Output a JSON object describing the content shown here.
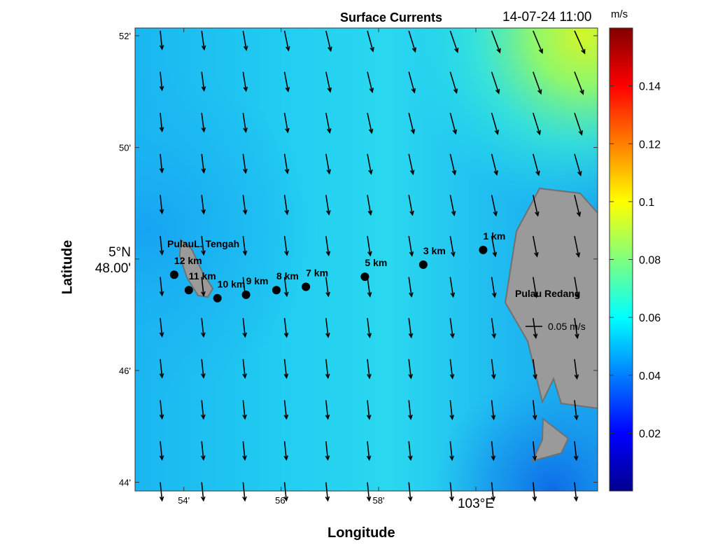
{
  "header": {
    "title": "Surface Currents",
    "timestamp": "14-07-24 11:00"
  },
  "axes": {
    "xlabel": "Longitude",
    "ylabel": "Latitude",
    "x_ticks": [
      {
        "label": "54'",
        "value": 102.9
      },
      {
        "label": "56'",
        "value": 102.9333
      },
      {
        "label": "58'",
        "value": 102.9667
      },
      {
        "label": "103°E",
        "value": 103.0
      }
    ],
    "y_ticks": [
      {
        "label": "44'",
        "value": 4.7333
      },
      {
        "label": "46'",
        "value": 4.7667
      },
      {
        "label": "5°N\n48.00'",
        "value": 4.8
      },
      {
        "label": "50'",
        "value": 4.8333
      },
      {
        "label": "52'",
        "value": 4.8667
      }
    ],
    "xlim": [
      102.8833,
      103.0417
    ],
    "ylim": [
      4.7307,
      4.869
    ]
  },
  "colorbar": {
    "unit": "m/s",
    "range": [
      0,
      0.16
    ],
    "colormap": "jet",
    "ticks": [
      {
        "label": "0.02",
        "value": 0.02
      },
      {
        "label": "0.04",
        "value": 0.04
      },
      {
        "label": "0.06",
        "value": 0.06
      },
      {
        "label": "0.08",
        "value": 0.08
      },
      {
        "label": "0.1",
        "value": 0.1
      },
      {
        "label": "0.12",
        "value": 0.12
      },
      {
        "label": "0.14",
        "value": 0.14
      }
    ]
  },
  "vector_key": {
    "label": "0.05 m/s",
    "speed": 0.05
  },
  "islands": [
    {
      "name": "Pulau Redang",
      "label": "Pulau Redang"
    },
    {
      "name": "Pulau L. Tengah",
      "label": "PulauL. Tengah"
    }
  ],
  "stations": [
    {
      "label": "1 km",
      "lon": 103.0025,
      "lat": 4.8027
    },
    {
      "label": "3 km",
      "lon": 102.982,
      "lat": 4.7983
    },
    {
      "label": "5 km",
      "lon": 102.962,
      "lat": 4.7947
    },
    {
      "label": "7 km",
      "lon": 102.9418,
      "lat": 4.7917
    },
    {
      "label": "8 km",
      "lon": 102.9317,
      "lat": 4.7907
    },
    {
      "label": "9 km",
      "lon": 102.9213,
      "lat": 4.7893
    },
    {
      "label": "10 km",
      "lon": 102.9115,
      "lat": 4.7883
    },
    {
      "label": "11 km",
      "lon": 102.9017,
      "lat": 4.7907
    },
    {
      "label": "12 km",
      "lon": 102.8967,
      "lat": 4.7953
    }
  ]
}
